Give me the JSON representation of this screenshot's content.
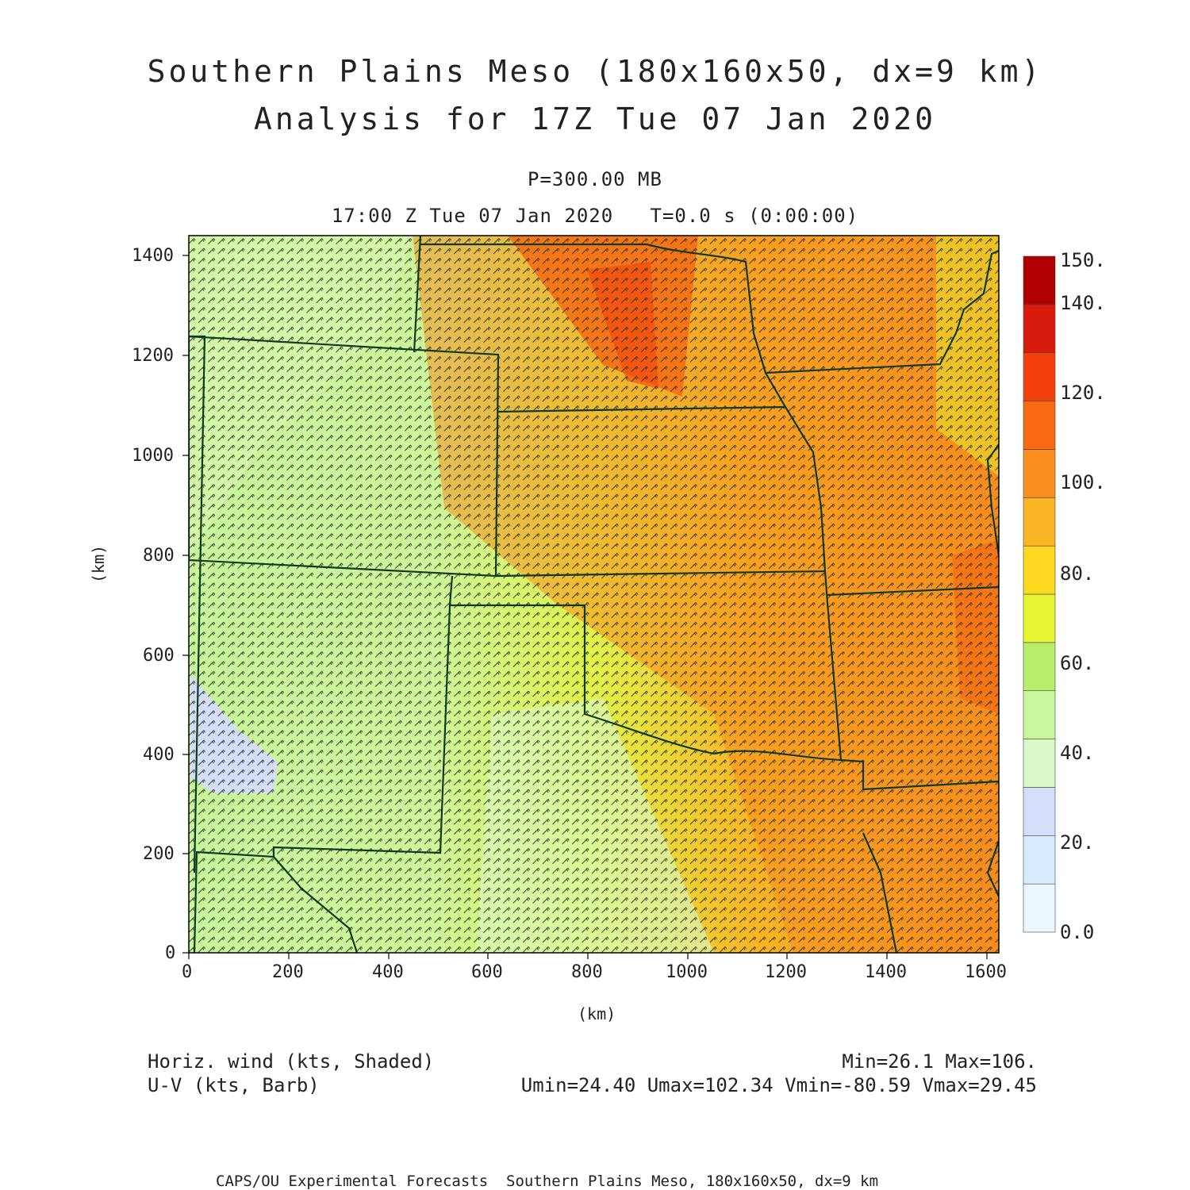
{
  "header": {
    "title_line1": "Southern Plains Meso (180x160x50, dx=9 km)",
    "title_line2": "Analysis for 17Z Tue 07 Jan 2020",
    "level": "P=300.00 MB",
    "valid_time": "17:00 Z Tue 07 Jan 2020   T=0.0 s (0:00:00)"
  },
  "axes": {
    "x_label": "(km)",
    "y_label": "(km)",
    "x_ticks": [
      "0",
      "200",
      "400",
      "600",
      "800",
      "1000",
      "1200",
      "1400",
      "1600"
    ],
    "y_ticks": [
      "0",
      "200",
      "400",
      "600",
      "800",
      "1000",
      "1200",
      "1400"
    ]
  },
  "colorbar": {
    "labels": [
      "0.0",
      "20.",
      "40.",
      "60.",
      "80.",
      "100.",
      "120.",
      "140.",
      "150."
    ],
    "colors": [
      "#eaf7fe",
      "#d6edfd",
      "#d5def8",
      "#d8fac8",
      "#cbf79c",
      "#b9ee6b",
      "#e6f632",
      "#fcd920",
      "#fbb423",
      "#f98e1d",
      "#f76a13",
      "#f4410c",
      "#d71b0c",
      "#b00000"
    ]
  },
  "legend": {
    "field1": "Horiz. wind (kts, Shaded)",
    "field2": "U-V (kts, Barb)",
    "stats1": "Min=26.1 Max=106.",
    "stats2": "Umin=24.40 Umax=102.34 Vmin=-80.59 Vmax=29.45"
  },
  "footer": "CAPS/OU Experimental Forecasts  Southern Plains Meso, 180x160x50, dx=9 km"
}
